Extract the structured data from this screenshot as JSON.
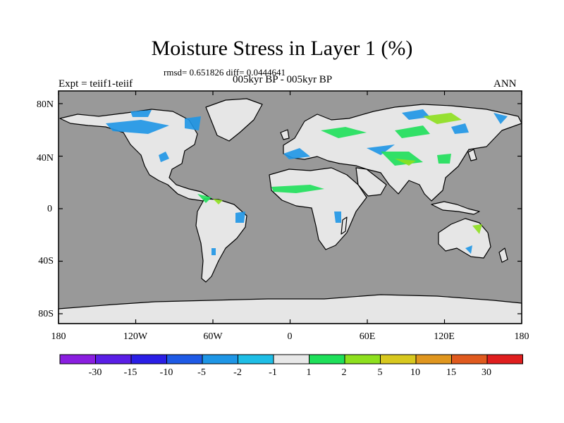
{
  "title": "Moisture Stress in Layer 1 (%)",
  "stats": "rmsd= 0.651826 diff= 0.0444641",
  "experiment": "Expt = teiif1-teiif",
  "period": "005kyr BP - 005kyr BP",
  "season": "ANN",
  "lat_labels": [
    "80N",
    "40N",
    "0",
    "40S",
    "80S"
  ],
  "lon_labels": [
    "180",
    "120W",
    "60W",
    "0",
    "60E",
    "120E",
    "180"
  ],
  "colorbar": {
    "labels": [
      "-30",
      "-15",
      "-10",
      "-5",
      "-2",
      "-1",
      "1",
      "2",
      "5",
      "10",
      "15",
      "30"
    ],
    "colors": [
      "#8a1ee0",
      "#5a1ee6",
      "#2a1ee6",
      "#1e5ae6",
      "#1e96e6",
      "#1ebee6",
      "#e8e8e8",
      "#1ee05a",
      "#8ee01e",
      "#d8c81e",
      "#e0961e",
      "#e05a1e",
      "#e01e1e"
    ]
  },
  "colors": {
    "ocean": "#999999",
    "land": "#e6e6e6"
  }
}
